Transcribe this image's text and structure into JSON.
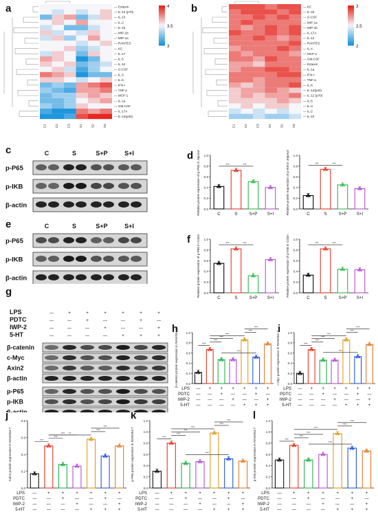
{
  "panel_labels": [
    "a",
    "b",
    "c",
    "d",
    "e",
    "f",
    "g",
    "h",
    "i",
    "j",
    "k",
    "l"
  ],
  "heatmap_a": {
    "rows": [
      "Eotaxin",
      "IL-12 (p70)",
      "IL-13",
      "IL-2",
      "IL-1b",
      "MIP-1b",
      "MIP-1a",
      "RANTES",
      "KC",
      "IL-17",
      "IL-5",
      "IL-10",
      "G-CSF",
      "IL-3",
      "IL-6",
      "IFN-r",
      "TNF-a",
      "MCP-1",
      "IL-1a",
      "GM-CSF",
      "IL-17A",
      "IL-12(p40)"
    ],
    "cols": [
      "C1",
      "C2",
      "C3",
      "S1",
      "S2",
      "S3"
    ],
    "legend_ticks": [
      "4",
      "3.5",
      "3"
    ],
    "values": [
      [
        3.5,
        3.5,
        3.5,
        3.5,
        3.5,
        3.5
      ],
      [
        3.5,
        3.4,
        3.5,
        3.4,
        3.5,
        3.6
      ],
      [
        3.2,
        3.6,
        3.7,
        3.2,
        3.4,
        3.6
      ],
      [
        3.5,
        3.6,
        3.5,
        3.7,
        3.5,
        3.5
      ],
      [
        3.4,
        3.5,
        3.2,
        3.2,
        3.4,
        3.5
      ],
      [
        3.6,
        3.4,
        3.5,
        3.4,
        3.6,
        3.5
      ],
      [
        3.4,
        3.6,
        3.3,
        3.5,
        3.7,
        3.5
      ],
      [
        3.5,
        3.5,
        3.5,
        3.4,
        3.5,
        3.6
      ],
      [
        3.5,
        3.5,
        3.6,
        3.3,
        3.4,
        3.5
      ],
      [
        3.4,
        3.6,
        3.5,
        3.2,
        3.6,
        3.5
      ],
      [
        3.7,
        3.6,
        3.5,
        3.0,
        3.2,
        3.5
      ],
      [
        3.6,
        3.5,
        3.6,
        3.2,
        3.3,
        3.4
      ],
      [
        3.5,
        3.6,
        3.4,
        3.1,
        3.3,
        3.5
      ],
      [
        3.8,
        3.7,
        3.6,
        3.0,
        3.2,
        3.2
      ],
      [
        3.6,
        3.6,
        3.5,
        3.4,
        3.5,
        3.6
      ],
      [
        3.2,
        3.3,
        3.2,
        3.7,
        3.8,
        3.9
      ],
      [
        3.3,
        3.2,
        3.1,
        3.7,
        3.7,
        3.8
      ],
      [
        3.2,
        3.3,
        3.3,
        3.6,
        3.7,
        3.6
      ],
      [
        3.2,
        3.2,
        3.3,
        3.5,
        3.6,
        3.7
      ],
      [
        3.3,
        3.2,
        3.3,
        3.6,
        3.5,
        3.5
      ],
      [
        3.1,
        3.0,
        3.0,
        3.8,
        3.7,
        3.8
      ],
      [
        3.0,
        3.0,
        3.1,
        3.9,
        4.0,
        4.0
      ]
    ]
  },
  "heatmap_b": {
    "rows": [
      "KC",
      "IL-1b",
      "G-CSF",
      "MIP-1a",
      "MIP-1b",
      "IL-17A",
      "IL-13",
      "RANTES",
      "IL-4",
      "MCP-1",
      "GM-CSF",
      "Eotaxin",
      "IL-1a",
      "IFN-r",
      "TNF-a",
      "IL-6",
      "IL-12(p40)",
      "IL-12 (p70)",
      "IL-5",
      "IL-3",
      "IL-2",
      "IL-10"
    ],
    "cols": [
      "C1",
      "C2",
      "C3",
      "S1",
      "S2",
      "S3"
    ],
    "legend_ticks": [
      "3",
      "2.5",
      "2"
    ],
    "values": [
      [
        2.9,
        2.9,
        2.9,
        2.8,
        2.9,
        2.9
      ],
      [
        2.8,
        2.9,
        2.9,
        2.9,
        2.8,
        2.9
      ],
      [
        2.8,
        2.8,
        2.9,
        2.8,
        2.9,
        2.8
      ],
      [
        2.8,
        2.9,
        2.8,
        2.8,
        2.8,
        2.8
      ],
      [
        2.8,
        2.7,
        2.8,
        2.9,
        2.8,
        2.9
      ],
      [
        2.9,
        2.8,
        2.8,
        2.9,
        2.8,
        2.9
      ],
      [
        2.8,
        2.8,
        2.9,
        2.8,
        2.7,
        2.8
      ],
      [
        2.8,
        2.8,
        2.8,
        2.8,
        2.8,
        2.9
      ],
      [
        2.7,
        2.8,
        2.8,
        2.8,
        2.9,
        2.8
      ],
      [
        2.8,
        2.7,
        2.8,
        2.8,
        2.8,
        2.7
      ],
      [
        2.8,
        2.8,
        2.7,
        2.9,
        2.8,
        2.8
      ],
      [
        2.7,
        2.7,
        2.6,
        2.8,
        2.8,
        2.8
      ],
      [
        2.7,
        2.8,
        2.8,
        2.9,
        2.9,
        2.8
      ],
      [
        2.8,
        2.8,
        2.8,
        2.8,
        2.9,
        2.9
      ],
      [
        2.8,
        2.8,
        2.7,
        2.8,
        2.8,
        2.8
      ],
      [
        2.7,
        2.6,
        2.7,
        2.8,
        2.8,
        2.9
      ],
      [
        2.6,
        2.7,
        2.7,
        2.8,
        2.7,
        2.6
      ],
      [
        2.6,
        2.7,
        2.6,
        2.7,
        2.7,
        2.8
      ],
      [
        2.6,
        2.6,
        2.6,
        2.6,
        2.7,
        2.6
      ],
      [
        2.5,
        2.6,
        2.5,
        2.6,
        2.6,
        2.5
      ],
      [
        2.4,
        2.5,
        2.4,
        2.5,
        2.4,
        2.5
      ],
      [
        2.3,
        2.3,
        2.4,
        2.3,
        2.3,
        2.4
      ]
    ]
  },
  "blots": {
    "c": {
      "cols": [
        "C",
        "S",
        "S+P",
        "S+I"
      ],
      "rows": [
        "p-P65",
        "p-IKB",
        "β-actin"
      ]
    },
    "e": {
      "cols": [
        "C",
        "S",
        "S+P",
        "S+I"
      ],
      "rows": [
        "p-P65",
        "p-IKB",
        "β-actin"
      ]
    },
    "g": {
      "conditions": [
        {
          "name": "LPS",
          "marks": [
            "—",
            "+",
            "+",
            "+",
            "+",
            "+",
            "+"
          ]
        },
        {
          "name": "PDTC",
          "marks": [
            "—",
            "—",
            "+",
            "—",
            "—",
            "+",
            "—"
          ]
        },
        {
          "name": "IWP-2",
          "marks": [
            "—",
            "—",
            "—",
            "+",
            "—",
            "—",
            "+"
          ]
        },
        {
          "name": "5-HT",
          "marks": [
            "—",
            "—",
            "—",
            "—",
            "+",
            "+",
            "+"
          ]
        }
      ],
      "rows": [
        "β-catenin",
        "c-Myc",
        "Axin2",
        "β-actin",
        "p-P65",
        "p-IKB",
        "β-actin"
      ]
    }
  },
  "colors": {
    "C": "#000000",
    "S": "#e8331f",
    "S+P": "#2fb94a",
    "S+I": "#b34dd6",
    "g1": "#111111",
    "g2": "#e8331f",
    "g3": "#1fb04a",
    "g4": "#b34dd6",
    "g5": "#e09b1a",
    "g6": "#2255e0",
    "g7": "#e07b2a"
  },
  "chart_data": [
    {
      "id": "d1",
      "type": "bar",
      "ylabel": "Relative protein expression of p-P65 in Jejunum",
      "categories": [
        "C",
        "S",
        "S+P",
        "S+I"
      ],
      "values": [
        0.42,
        0.72,
        0.51,
        0.4
      ],
      "ylim": [
        0,
        1.0
      ],
      "yticks": [
        "0.0",
        "0.2",
        "0.4",
        "0.6",
        "0.8",
        "1.0"
      ],
      "sig": [
        "***",
        "***"
      ]
    },
    {
      "id": "d2",
      "type": "bar",
      "ylabel": "Relative protein expression of p-IKB in Jejunum",
      "categories": [
        "C",
        "S",
        "S+P",
        "S+I"
      ],
      "values": [
        0.25,
        0.74,
        0.45,
        0.38
      ],
      "ylim": [
        0,
        1.0
      ],
      "yticks": [
        "0.0",
        "0.2",
        "0.4",
        "0.6",
        "0.8",
        "1.0"
      ],
      "sig": [
        "***",
        "***"
      ]
    },
    {
      "id": "f1",
      "type": "bar",
      "ylabel": "Relative protein expression of p-P65 in Colon",
      "categories": [
        "C",
        "S",
        "S+P",
        "S+I"
      ],
      "values": [
        0.55,
        0.82,
        0.32,
        0.62
      ],
      "ylim": [
        0,
        1.0
      ],
      "yticks": [
        "0.0",
        "0.2",
        "0.4",
        "0.6",
        "0.8",
        "1.0"
      ],
      "sig": [
        "***",
        "***"
      ]
    },
    {
      "id": "f2",
      "type": "bar",
      "ylabel": "Relative protein expression of p-IKB in Colon",
      "categories": [
        "C",
        "S",
        "S+P",
        "S+I"
      ],
      "values": [
        0.33,
        0.82,
        0.44,
        0.43
      ],
      "ylim": [
        0,
        1.0
      ],
      "yticks": [
        "0.0",
        "0.2",
        "0.4",
        "0.6",
        "0.8",
        "1.0"
      ],
      "sig": [
        "***",
        "***"
      ]
    },
    {
      "id": "h",
      "type": "bar",
      "ylabel": "β-catenin protein expression in RAW264.7",
      "values": [
        0.22,
        0.67,
        0.47,
        0.47,
        0.86,
        0.52,
        0.78
      ],
      "ylim": [
        0,
        1.0
      ],
      "yticks": [
        "0.0",
        "0.2",
        "0.4",
        "0.6",
        "0.8",
        "1.0"
      ],
      "sig": [
        "***",
        "***",
        "***",
        "***",
        "***",
        "***",
        "***"
      ]
    },
    {
      "id": "i",
      "type": "bar",
      "ylabel": "c-Myc protein expression in RAW264.7",
      "values": [
        0.2,
        0.67,
        0.46,
        0.46,
        0.86,
        0.53,
        0.77
      ],
      "ylim": [
        0,
        1.0
      ],
      "yticks": [
        "0.0",
        "0.2",
        "0.4",
        "0.6",
        "0.8",
        "1.0"
      ],
      "sig": [
        "***",
        "***",
        "***",
        "***",
        "***",
        "***",
        "***"
      ]
    },
    {
      "id": "j",
      "type": "bar",
      "ylabel": "Axin2 protein expression in RAW264.7",
      "values": [
        0.17,
        0.5,
        0.28,
        0.26,
        0.58,
        0.38,
        0.5
      ],
      "ylim": [
        0,
        0.8
      ],
      "yticks": [
        "0.0",
        "0.2",
        "0.4",
        "0.6",
        "0.8"
      ],
      "sig": [
        "***",
        "***",
        "***",
        "**",
        "***",
        "***"
      ]
    },
    {
      "id": "k",
      "type": "bar",
      "ylabel": "p-P65 protein expression in RAW264.7",
      "values": [
        0.3,
        0.8,
        0.44,
        0.47,
        0.98,
        0.52,
        0.48
      ],
      "ylim": [
        0,
        1.2
      ],
      "yticks": [
        "0.0",
        "0.2",
        "0.4",
        "0.6",
        "0.8",
        "1.0",
        "1.2"
      ],
      "sig": [
        "***",
        "***",
        "***",
        "***",
        "***",
        "***",
        "***"
      ]
    },
    {
      "id": "l",
      "type": "bar",
      "ylabel": "p-IKB protein expression in RAW264.7",
      "values": [
        0.5,
        0.76,
        0.5,
        0.6,
        0.97,
        0.71,
        0.66
      ],
      "ylim": [
        0,
        1.2
      ],
      "yticks": [
        "0.0",
        "0.2",
        "0.4",
        "0.6",
        "0.8",
        "1.0",
        "1.2"
      ],
      "sig": [
        "***",
        "***",
        "***",
        "***",
        "***",
        "***",
        "***"
      ]
    }
  ],
  "cond_table": {
    "names": [
      "LPS",
      "PDTC",
      "IWP-2",
      "5-HT"
    ],
    "marks": [
      [
        "—",
        "+",
        "+",
        "+",
        "+",
        "+",
        "+"
      ],
      [
        "—",
        "—",
        "+",
        "—",
        "—",
        "+",
        "—"
      ],
      [
        "—",
        "—",
        "—",
        "+",
        "—",
        "—",
        "+"
      ],
      [
        "—",
        "—",
        "—",
        "—",
        "+",
        "+",
        "+"
      ]
    ]
  }
}
